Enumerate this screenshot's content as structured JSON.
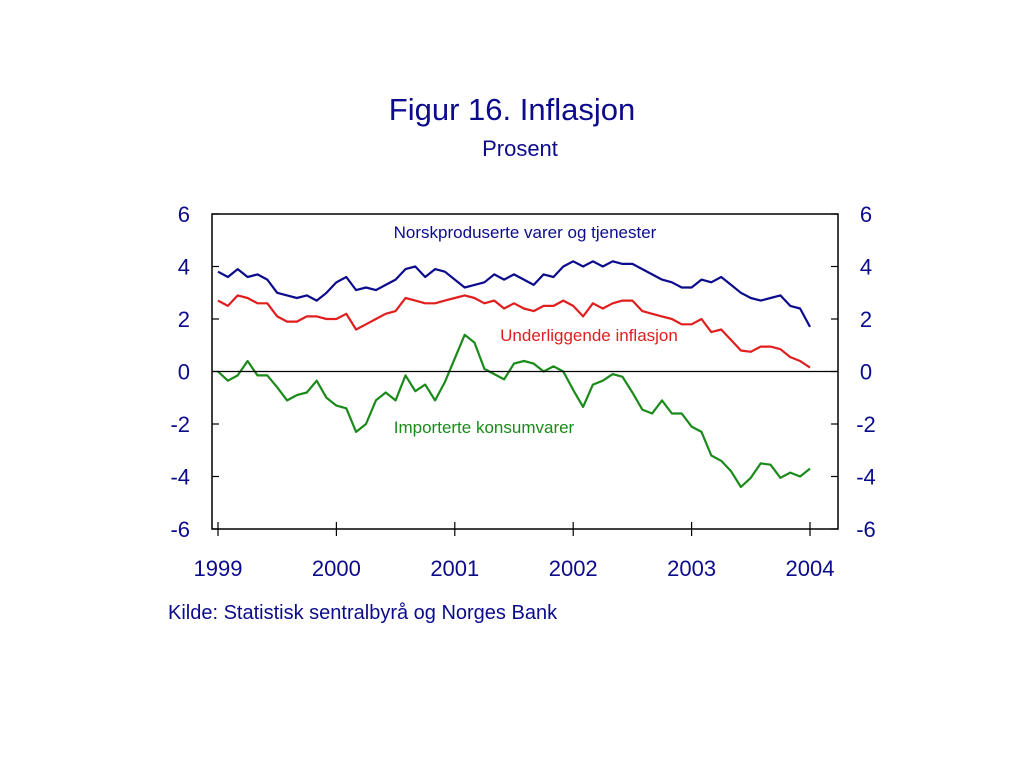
{
  "title": "Figur 16. Inflasjon",
  "subtitle": "Prosent",
  "source": "Kilde: Statistisk sentralbyrå og Norges Bank",
  "colors": {
    "text": "#0b0b8c",
    "axis": "#000000"
  },
  "chart_data": {
    "type": "line",
    "title": "Figur 16. Inflasjon",
    "subtitle": "Prosent",
    "xlabel": "",
    "ylabel": "",
    "ylim": [
      -6,
      6
    ],
    "y_ticks": [
      6,
      4,
      2,
      0,
      -2,
      -4,
      -6
    ],
    "y_tick_labels": [
      "6",
      "4",
      "2",
      "0",
      "-2",
      "-4",
      "-6"
    ],
    "x_ticks": [
      "1999",
      "2000",
      "2001",
      "2002",
      "2003",
      "2004"
    ],
    "xlim": [
      "1999-01",
      "2004-02"
    ],
    "grid": false,
    "legend": "inline labels",
    "zero_line": true,
    "series": [
      {
        "name": "Norskproduserte varer og tjenester",
        "color": "#0b0b8c",
        "values": [
          3.8,
          3.6,
          3.9,
          3.6,
          3.7,
          3.5,
          3.0,
          2.9,
          2.8,
          2.9,
          2.7,
          3.0,
          3.4,
          3.6,
          3.1,
          3.2,
          3.1,
          3.3,
          3.5,
          3.9,
          4.0,
          3.6,
          3.9,
          3.8,
          3.5,
          3.2,
          3.3,
          3.4,
          3.7,
          3.5,
          3.7,
          3.5,
          3.3,
          3.7,
          3.6,
          4.0,
          4.2,
          4.0,
          4.2,
          4.0,
          4.2,
          4.1,
          4.1,
          3.9,
          3.7,
          3.5,
          3.4,
          3.2,
          3.2,
          3.5,
          3.4,
          3.6,
          3.3,
          3.0,
          2.8,
          2.7,
          2.8,
          2.9,
          2.5,
          2.4,
          1.7
        ]
      },
      {
        "name": "Underliggende inflasjon",
        "color": "#e01e1e",
        "values": [
          2.7,
          2.5,
          2.9,
          2.8,
          2.6,
          2.6,
          2.1,
          1.9,
          1.9,
          2.1,
          2.1,
          2.0,
          2.0,
          2.2,
          1.6,
          1.8,
          2.0,
          2.2,
          2.3,
          2.8,
          2.7,
          2.6,
          2.6,
          2.7,
          2.8,
          2.9,
          2.8,
          2.6,
          2.7,
          2.4,
          2.6,
          2.4,
          2.3,
          2.5,
          2.5,
          2.7,
          2.5,
          2.1,
          2.6,
          2.4,
          2.6,
          2.7,
          2.7,
          2.3,
          2.2,
          2.1,
          2.0,
          1.8,
          1.8,
          2.0,
          1.5,
          1.6,
          1.2,
          0.8,
          0.75,
          0.95,
          0.95,
          0.85,
          0.55,
          0.4,
          0.15
        ]
      },
      {
        "name": "Importerte konsumvarer",
        "color": "#1a8a1a",
        "values": [
          0.0,
          -0.35,
          -0.15,
          0.4,
          -0.15,
          -0.15,
          -0.6,
          -1.1,
          -0.9,
          -0.8,
          -0.35,
          -1.0,
          -1.3,
          -1.4,
          -2.3,
          -2.0,
          -1.1,
          -0.8,
          -1.1,
          -0.15,
          -0.75,
          -0.5,
          -1.1,
          -0.4,
          0.5,
          1.4,
          1.1,
          0.1,
          -0.1,
          -0.3,
          0.3,
          0.4,
          0.3,
          0.0,
          0.2,
          0.0,
          -0.7,
          -1.35,
          -0.5,
          -0.35,
          -0.1,
          -0.2,
          -0.8,
          -1.45,
          -1.6,
          -1.1,
          -1.6,
          -1.6,
          -2.1,
          -2.3,
          -3.2,
          -3.4,
          -3.8,
          -4.4,
          -4.05,
          -3.5,
          -3.55,
          -4.05,
          -3.85,
          -4.0,
          -3.7
        ]
      }
    ],
    "annotations": [
      {
        "text": "Norskproduserte varer og tjenester",
        "series": 0
      },
      {
        "text": "Underliggende inflasjon",
        "series": 1
      },
      {
        "text": "Importerte konsumvarer",
        "series": 2
      }
    ]
  }
}
